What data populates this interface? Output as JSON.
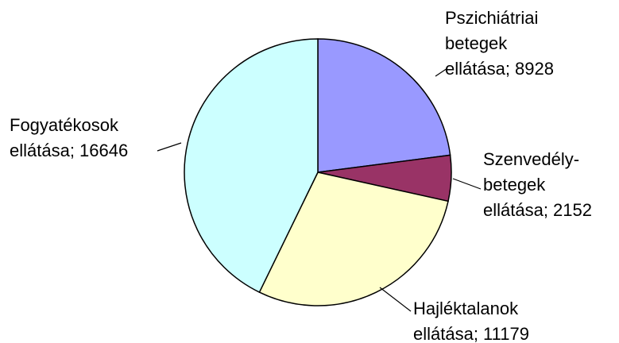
{
  "chart_data": {
    "type": "pie",
    "labels": [
      [
        "Pszichiátriai",
        "betegek",
        "ellátása; 8928"
      ],
      [
        "Szenvedély-",
        "betegek",
        "ellátása; 2152"
      ],
      [
        "Hajléktalanok",
        "ellátása; 11179"
      ],
      [
        "Fogyatékosok",
        "ellátása; 16646"
      ]
    ],
    "values": [
      8928,
      2152,
      11179,
      16646
    ],
    "colors": [
      "#9999ff",
      "#993366",
      "#ffffcc",
      "#ccffff"
    ]
  }
}
